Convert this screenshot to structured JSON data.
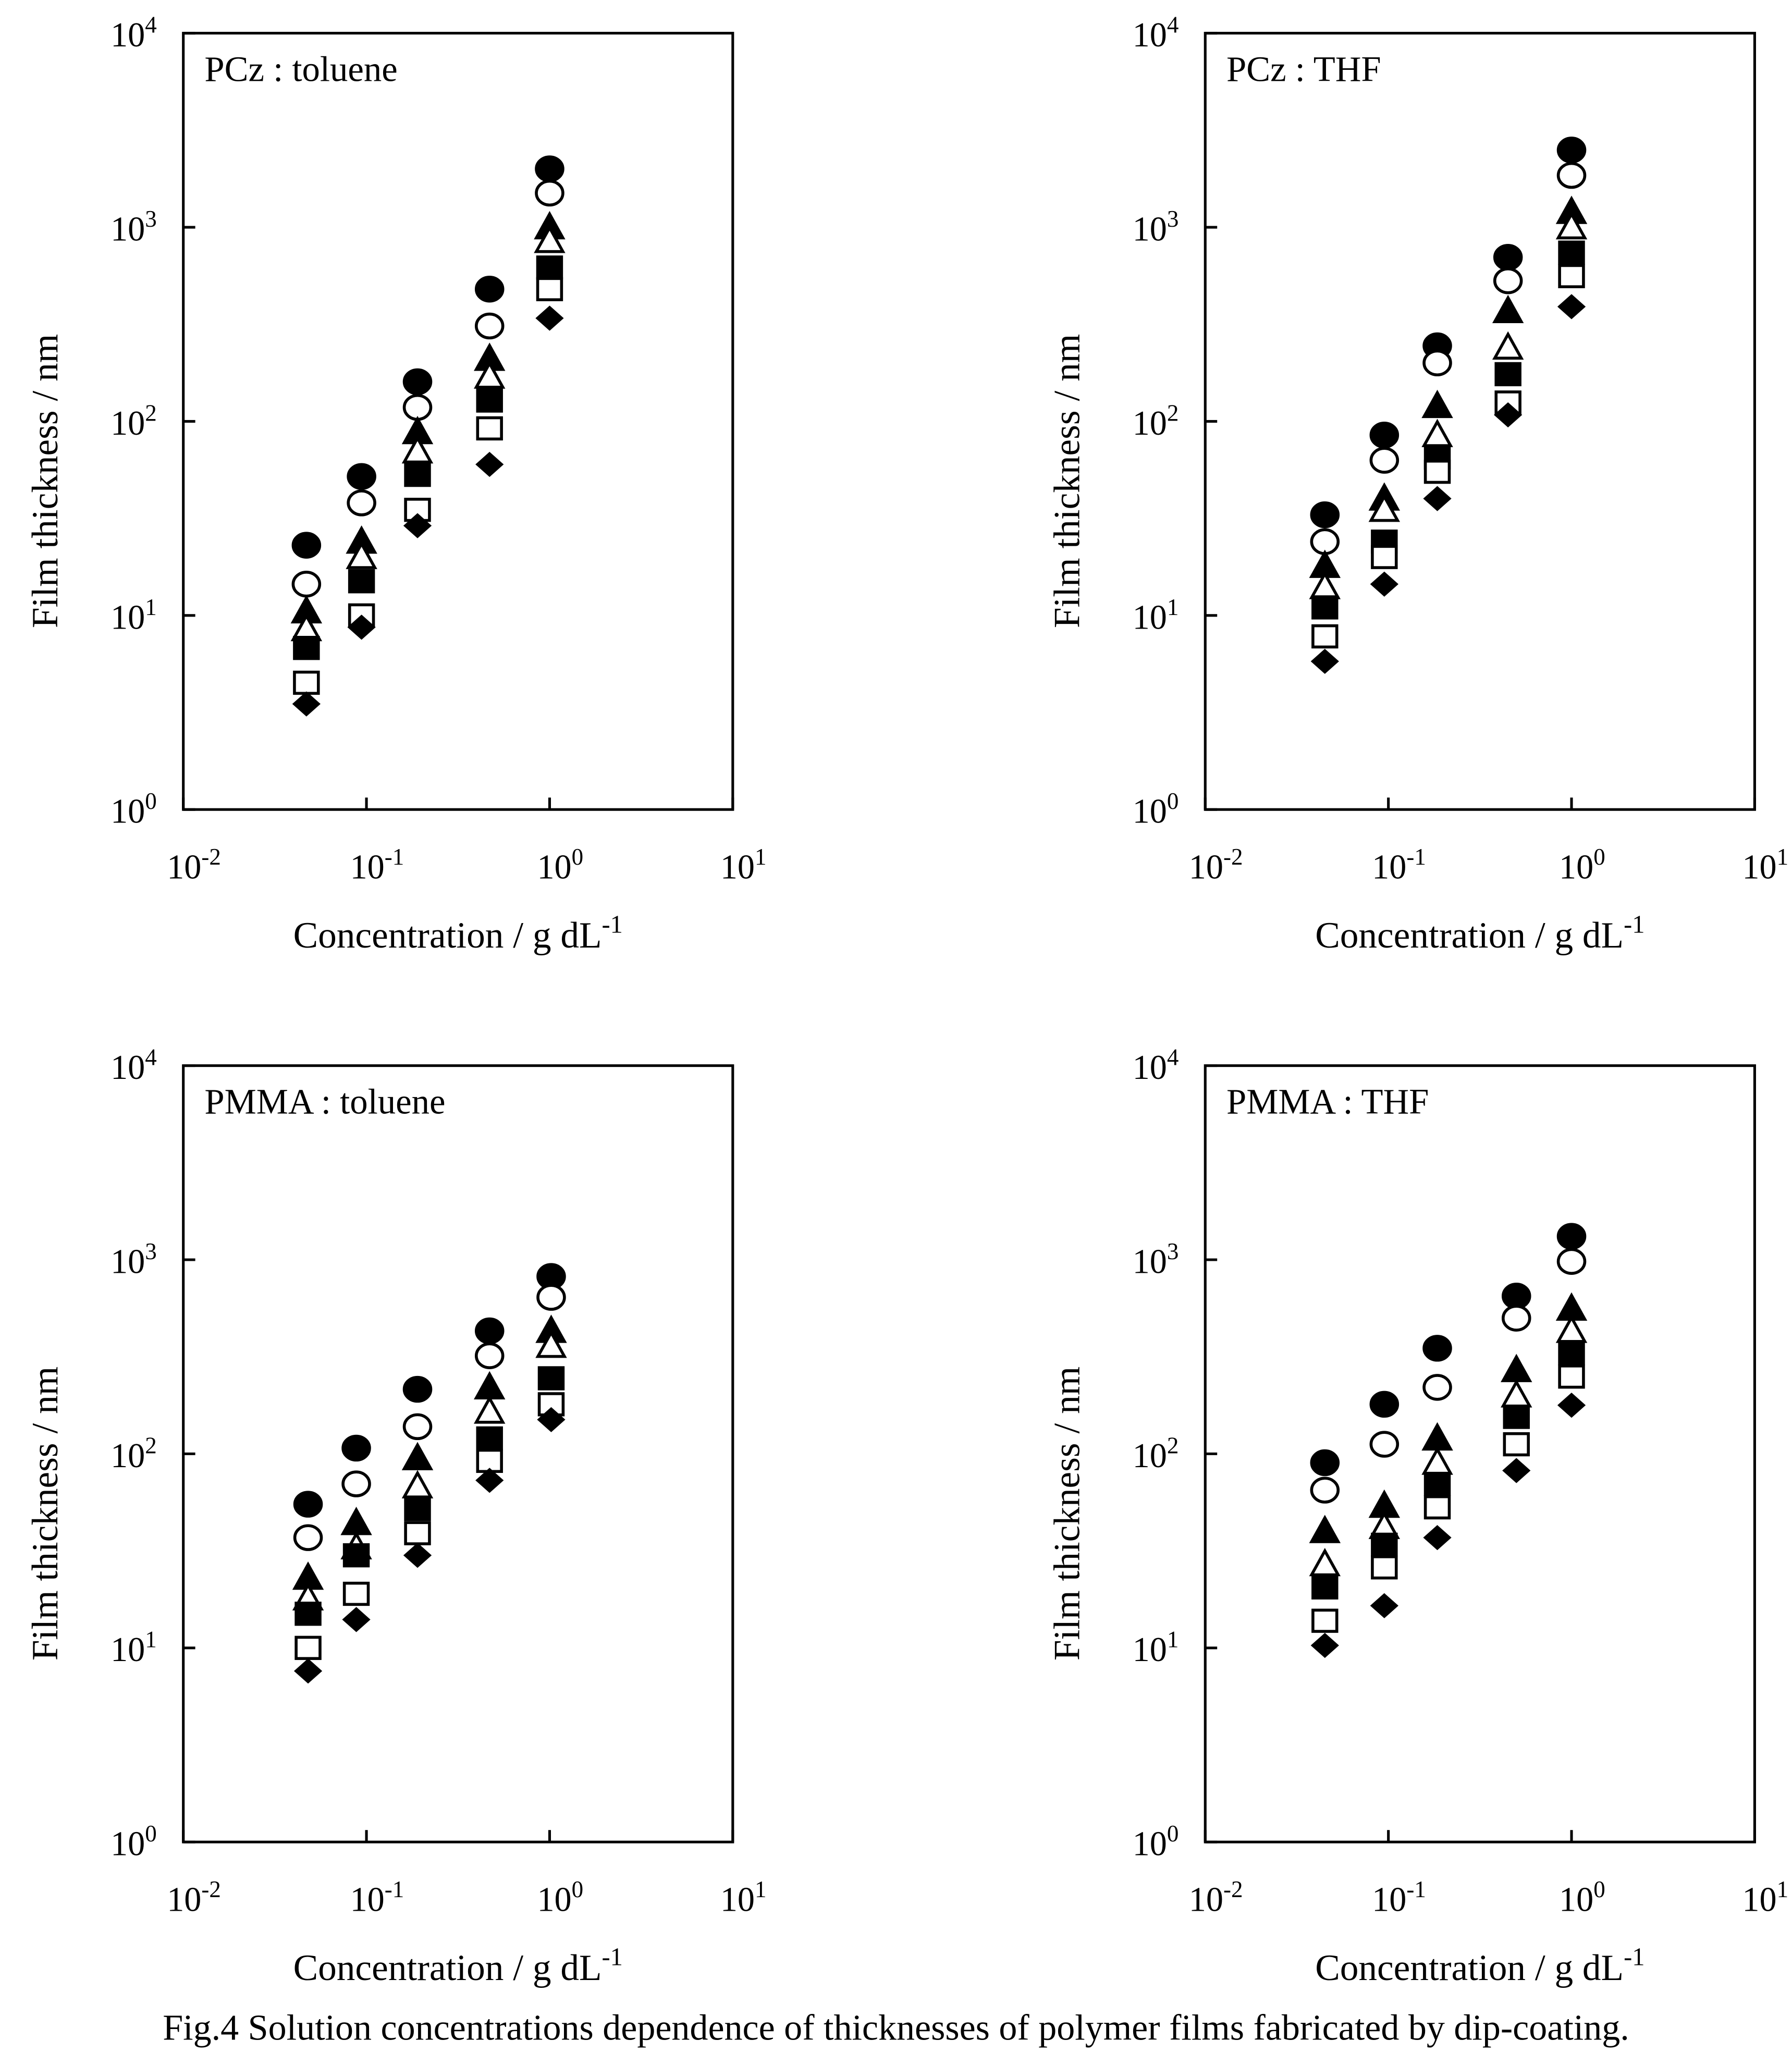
{
  "caption": "Fig.4 Solution concentrations dependence of thicknesses of polymer films fabricated by dip-coating.",
  "series_markers": [
    "filled-circle",
    "open-circle",
    "filled-triangle",
    "open-triangle",
    "filled-square",
    "open-square",
    "filled-diamond"
  ],
  "chart_data": [
    {
      "type": "scatter",
      "title": "PCz : toluene",
      "xlabel": "Concentration / g dL",
      "xlabel_sup": "-1",
      "ylabel": "Film thickness / nm",
      "xscale": "log",
      "yscale": "log",
      "xlim": [
        0.01,
        10
      ],
      "ylim": [
        1,
        10000
      ],
      "xticks": [
        {
          "base": "10",
          "exp": "-2"
        },
        {
          "base": "10",
          "exp": "-1"
        },
        {
          "base": "10",
          "exp": "0"
        },
        {
          "base": "10",
          "exp": "1"
        }
      ],
      "yticks": [
        {
          "base": "10",
          "exp": "0"
        },
        {
          "base": "10",
          "exp": "1"
        },
        {
          "base": "10",
          "exp": "2"
        },
        {
          "base": "10",
          "exp": "3"
        },
        {
          "base": "10",
          "exp": "4"
        }
      ],
      "x": [
        0.047,
        0.094,
        0.19,
        0.47,
        1.0
      ],
      "series": [
        {
          "marker": "filled-circle",
          "values": [
            23,
            52,
            160,
            480,
            2000
          ]
        },
        {
          "marker": "open-circle",
          "values": [
            14.5,
            38,
            118,
            310,
            1500
          ]
        },
        {
          "marker": "filled-triangle",
          "values": [
            10.5,
            24,
            88,
            210,
            1000
          ]
        },
        {
          "marker": "open-triangle",
          "values": [
            8.5,
            20,
            70,
            170,
            850
          ]
        },
        {
          "marker": "filled-square",
          "values": [
            6.8,
            15,
            53,
            128,
            620
          ]
        },
        {
          "marker": "open-square",
          "values": [
            4.5,
            10,
            35,
            92,
            480
          ]
        },
        {
          "marker": "filled-diamond",
          "values": [
            3.5,
            8.7,
            29,
            60,
            340
          ]
        }
      ]
    },
    {
      "type": "scatter",
      "title": "PCz : THF",
      "xlabel": "Concentration / g dL",
      "xlabel_sup": "-1",
      "ylabel": "Film thickness / nm",
      "xscale": "log",
      "yscale": "log",
      "xlim": [
        0.01,
        10
      ],
      "ylim": [
        1,
        10000
      ],
      "xticks": [
        {
          "base": "10",
          "exp": "-2"
        },
        {
          "base": "10",
          "exp": "-1"
        },
        {
          "base": "10",
          "exp": "0"
        },
        {
          "base": "10",
          "exp": "1"
        }
      ],
      "yticks": [
        {
          "base": "10",
          "exp": "0"
        },
        {
          "base": "10",
          "exp": "1"
        },
        {
          "base": "10",
          "exp": "2"
        },
        {
          "base": "10",
          "exp": "3"
        },
        {
          "base": "10",
          "exp": "4"
        }
      ],
      "x": [
        0.045,
        0.095,
        0.185,
        0.45,
        1.0
      ],
      "series": [
        {
          "marker": "filled-circle",
          "values": [
            33,
            85,
            245,
            700,
            2500
          ]
        },
        {
          "marker": "open-circle",
          "values": [
            24,
            63,
            200,
            530,
            1850
          ]
        },
        {
          "marker": "filled-triangle",
          "values": [
            18,
            40,
            120,
            370,
            1200
          ]
        },
        {
          "marker": "open-triangle",
          "values": [
            14,
            35,
            85,
            240,
            1000
          ]
        },
        {
          "marker": "filled-square",
          "values": [
            11,
            24,
            65,
            175,
            740
          ]
        },
        {
          "marker": "open-square",
          "values": [
            7.8,
            20,
            55,
            125,
            560
          ]
        },
        {
          "marker": "filled-diamond",
          "values": [
            5.8,
            14.5,
            40,
            108,
            390
          ]
        }
      ]
    },
    {
      "type": "scatter",
      "title": "PMMA : toluene",
      "xlabel": "Concentration / g dL",
      "xlabel_sup": "-1",
      "ylabel": "Film thickness / nm",
      "xscale": "log",
      "yscale": "log",
      "xlim": [
        0.01,
        10
      ],
      "ylim": [
        1,
        10000
      ],
      "xticks": [
        {
          "base": "10",
          "exp": "-2"
        },
        {
          "base": "10",
          "exp": "-1"
        },
        {
          "base": "10",
          "exp": "0"
        },
        {
          "base": "10",
          "exp": "1"
        }
      ],
      "yticks": [
        {
          "base": "10",
          "exp": "0"
        },
        {
          "base": "10",
          "exp": "1"
        },
        {
          "base": "10",
          "exp": "2"
        },
        {
          "base": "10",
          "exp": "3"
        },
        {
          "base": "10",
          "exp": "4"
        }
      ],
      "x": [
        0.048,
        0.088,
        0.19,
        0.47,
        1.02
      ],
      "series": [
        {
          "marker": "filled-circle",
          "values": [
            55,
            107,
            215,
            430,
            820
          ]
        },
        {
          "marker": "open-circle",
          "values": [
            37,
            70,
            138,
            320,
            640
          ]
        },
        {
          "marker": "filled-triangle",
          "values": [
            23,
            44,
            95,
            220,
            430
          ]
        },
        {
          "marker": "open-triangle",
          "values": [
            18,
            33,
            68,
            165,
            360
          ]
        },
        {
          "marker": "filled-square",
          "values": [
            15,
            30,
            52,
            120,
            245
          ]
        },
        {
          "marker": "open-square",
          "values": [
            10,
            19,
            39,
            92,
            180
          ]
        },
        {
          "marker": "filled-diamond",
          "values": [
            7.6,
            14,
            30,
            73,
            150
          ]
        }
      ]
    },
    {
      "type": "scatter",
      "title": "PMMA : THF",
      "xlabel": "Concentration / g dL",
      "xlabel_sup": "-1",
      "ylabel": "Film thickness / nm",
      "xscale": "log",
      "yscale": "log",
      "xlim": [
        0.01,
        10
      ],
      "ylim": [
        1,
        10000
      ],
      "xticks": [
        {
          "base": "10",
          "exp": "-2"
        },
        {
          "base": "10",
          "exp": "-1"
        },
        {
          "base": "10",
          "exp": "0"
        },
        {
          "base": "10",
          "exp": "1"
        }
      ],
      "yticks": [
        {
          "base": "10",
          "exp": "0"
        },
        {
          "base": "10",
          "exp": "1"
        },
        {
          "base": "10",
          "exp": "2"
        },
        {
          "base": "10",
          "exp": "3"
        },
        {
          "base": "10",
          "exp": "4"
        }
      ],
      "x": [
        0.045,
        0.095,
        0.185,
        0.5,
        1.0
      ],
      "series": [
        {
          "marker": "filled-circle",
          "values": [
            90,
            180,
            350,
            650,
            1320
          ]
        },
        {
          "marker": "open-circle",
          "values": [
            65,
            112,
            220,
            500,
            980
          ]
        },
        {
          "marker": "filled-triangle",
          "values": [
            40,
            54,
            120,
            270,
            560
          ]
        },
        {
          "marker": "open-triangle",
          "values": [
            27,
            42,
            90,
            200,
            430
          ]
        },
        {
          "marker": "filled-square",
          "values": [
            20.5,
            34,
            70,
            155,
            330
          ]
        },
        {
          "marker": "open-square",
          "values": [
            13.8,
            26,
            53,
            112,
            250
          ]
        },
        {
          "marker": "filled-diamond",
          "values": [
            10.3,
            16.5,
            37,
            82,
            178
          ]
        }
      ]
    }
  ]
}
